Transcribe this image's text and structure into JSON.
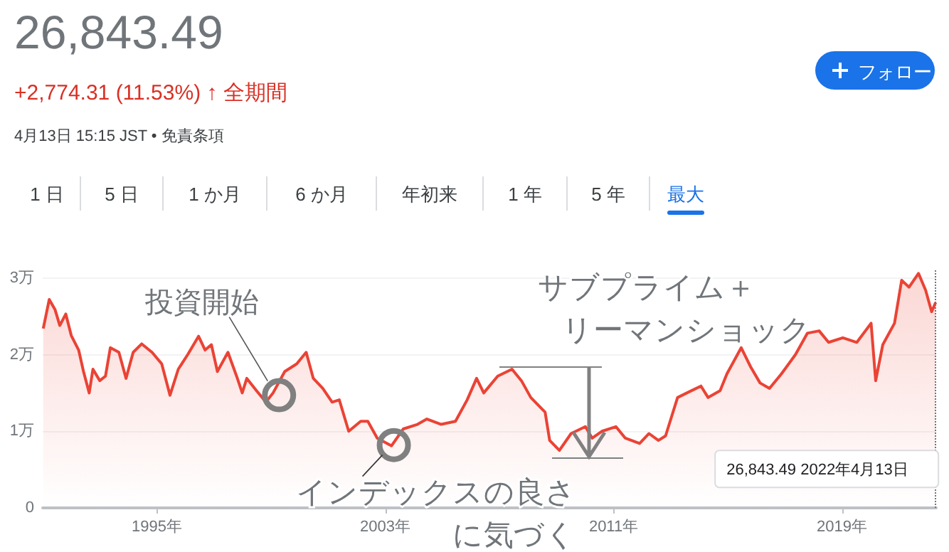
{
  "chart_data": {
    "type": "area",
    "title": "26,843.49",
    "subtitle": "+2,774.31 (11.53%) ↑ 全期間",
    "annotations": [
      "4月13日 15:15 JST • 免責条項",
      "フォロー",
      "1 日",
      "5 日",
      "1 か月",
      "6 か月",
      "年初来",
      "1 年",
      "5 年",
      "最大",
      {
        "text": "投資開始",
        "x": 1999.28,
        "y": 1.47
      },
      {
        "text": "インデックスの良さに気づく",
        "x": 2003.3,
        "y": 0.82
      },
      "サブプライム＋リーマンショック",
      "26,843.49  2022年4月13日"
    ],
    "x": [
      1991.02,
      1991.23,
      1991.43,
      1991.6,
      1991.81,
      1992.0,
      1992.26,
      1992.43,
      1992.63,
      1992.76,
      1993.0,
      1993.2,
      1993.37,
      1993.67,
      1993.92,
      1994.17,
      1994.47,
      1994.83,
      1995.17,
      1995.46,
      1995.75,
      1996.08,
      1996.46,
      1996.69,
      1996.91,
      1997.12,
      1997.49,
      1997.82,
      1997.99,
      1998.15,
      1998.49,
      1998.82,
      1999.07,
      1999.48,
      1999.9,
      2000.23,
      2000.48,
      2000.81,
      2001.14,
      2001.39,
      2001.72,
      2002.14,
      2002.39,
      2002.72,
      2003.22,
      2003.63,
      2004.13,
      2004.46,
      2004.96,
      2005.46,
      2005.87,
      2006.2,
      2006.45,
      2006.94,
      2007.44,
      2007.77,
      2008.1,
      2008.6,
      2008.76,
      2009.1,
      2009.51,
      2010.01,
      2010.25,
      2010.59,
      2011.08,
      2011.41,
      2011.91,
      2012.24,
      2012.57,
      2012.82,
      2013.24,
      2013.73,
      2014.06,
      2014.31,
      2014.73,
      2014.97,
      2015.47,
      2015.8,
      2016.13,
      2016.46,
      2016.88,
      2017.37,
      2017.79,
      2018.2,
      2018.53,
      2019.03,
      2019.52,
      2020.02,
      2020.18,
      2020.43,
      2020.84,
      2021.09,
      2021.35,
      2021.68,
      2021.93,
      2022.14,
      2022.28
    ],
    "series": [
      {
        "color": "#ea4335",
        "values": [
          2.34,
          2.72,
          2.59,
          2.38,
          2.53,
          2.25,
          2.06,
          1.78,
          1.5,
          1.81,
          1.66,
          1.72,
          2.09,
          2.03,
          1.69,
          2.03,
          2.14,
          2.03,
          1.88,
          1.47,
          1.81,
          2.0,
          2.24,
          2.06,
          2.13,
          1.78,
          2.03,
          1.69,
          1.5,
          1.69,
          1.53,
          1.38,
          1.5,
          1.78,
          1.88,
          2.03,
          1.69,
          1.56,
          1.38,
          1.41,
          1.0,
          1.13,
          1.13,
          0.91,
          0.81,
          1.03,
          1.09,
          1.16,
          1.09,
          1.13,
          1.41,
          1.69,
          1.5,
          1.72,
          1.81,
          1.66,
          1.44,
          1.25,
          0.88,
          0.75,
          0.97,
          1.06,
          0.91,
          1.0,
          1.06,
          0.91,
          0.84,
          0.97,
          0.88,
          0.94,
          1.44,
          1.53,
          1.59,
          1.44,
          1.53,
          1.75,
          2.09,
          1.84,
          1.63,
          1.56,
          1.75,
          2.0,
          2.28,
          2.31,
          2.16,
          2.22,
          2.16,
          2.41,
          1.66,
          2.13,
          2.41,
          2.97,
          2.88,
          3.06,
          2.84,
          2.56,
          2.68
        ]
      }
    ],
    "xlim": [
      1991,
      2022.3
    ],
    "xticks": [
      {
        "value": 1995,
        "label": "1995年"
      },
      {
        "value": 2003,
        "label": "2003年"
      },
      {
        "value": 2011,
        "label": "2011年"
      },
      {
        "value": 2019,
        "label": "2019年"
      }
    ],
    "ylim": [
      0,
      3.1
    ],
    "yticks": [
      0,
      {
        "value": 1,
        "label": "1万"
      },
      {
        "value": 2,
        "label": "2万"
      },
      {
        "value": 3,
        "label": "3万"
      }
    ],
    "grid": "y",
    "marker": "none",
    "ref_lines": [
      {
        "axis": "x",
        "value": 2022.28,
        "line_style": "dotted",
        "color": "#70757a"
      }
    ]
  }
}
